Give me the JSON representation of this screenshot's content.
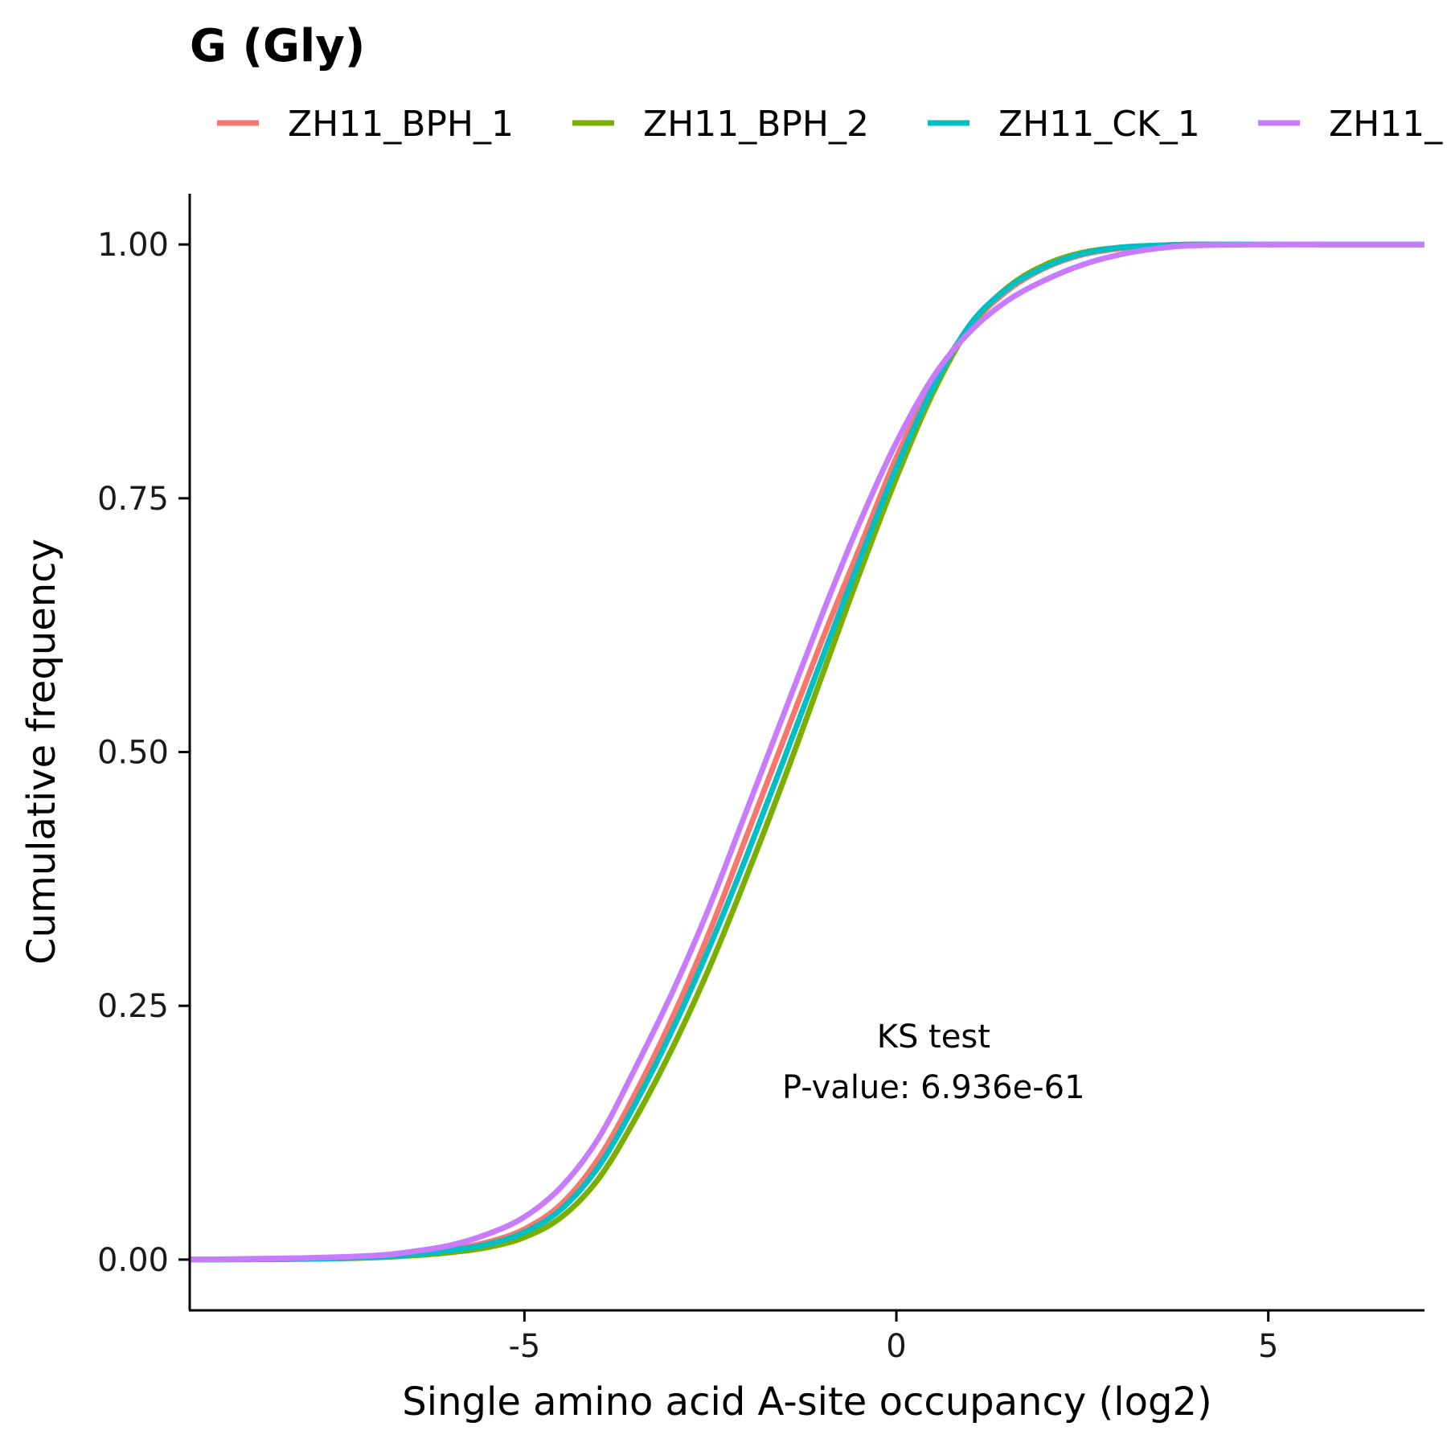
{
  "chart_data": {
    "type": "line",
    "title": "G (Gly)",
    "xlabel": "Single amino acid A-site occupancy (log2)",
    "ylabel": "Cumulative frequency",
    "xlim": [
      -9.5,
      7.1
    ],
    "ylim": [
      -0.05,
      1.05
    ],
    "x_ticks": [
      -5,
      0,
      5
    ],
    "x_tick_labels": [
      "-5",
      "0",
      "5"
    ],
    "y_ticks": [
      0,
      0.25,
      0.5,
      0.75,
      1.0
    ],
    "y_tick_labels": [
      "0.00",
      "0.25",
      "0.50",
      "0.75",
      "1.00"
    ],
    "grid": false,
    "legend_position": "top",
    "annotation": {
      "lines": [
        "KS test",
        "P-value: 6.936e-61"
      ],
      "x": 0.5,
      "y": [
        0.22,
        0.17
      ]
    },
    "x": [
      -9.5,
      -8,
      -7,
      -6.5,
      -6,
      -5.5,
      -5,
      -4.5,
      -4,
      -3.5,
      -3,
      -2.5,
      -2,
      -1.5,
      -1,
      -0.5,
      0,
      0.5,
      1,
      1.5,
      2,
      2.5,
      3,
      3.5,
      4,
      5,
      6,
      7.1
    ],
    "series": [
      {
        "name": "ZH11_BPH_1",
        "color": "#F8766D",
        "values": [
          0,
          0.001,
          0.003,
          0.006,
          0.01,
          0.017,
          0.03,
          0.055,
          0.1,
          0.165,
          0.24,
          0.325,
          0.42,
          0.515,
          0.61,
          0.7,
          0.79,
          0.865,
          0.92,
          0.955,
          0.977,
          0.99,
          0.996,
          0.999,
          1.0,
          1.0,
          1.0,
          1.0
        ]
      },
      {
        "name": "ZH11_BPH_2",
        "color": "#7CAE00",
        "values": [
          0,
          0.0005,
          0.002,
          0.004,
          0.007,
          0.012,
          0.022,
          0.042,
          0.08,
          0.14,
          0.21,
          0.29,
          0.38,
          0.475,
          0.575,
          0.675,
          0.77,
          0.855,
          0.92,
          0.958,
          0.98,
          0.992,
          0.997,
          0.999,
          1.0,
          1.0,
          1.0,
          1.0
        ]
      },
      {
        "name": "ZH11_CK_1",
        "color": "#00BFC4",
        "values": [
          0,
          0.0007,
          0.0025,
          0.005,
          0.009,
          0.015,
          0.027,
          0.05,
          0.092,
          0.155,
          0.228,
          0.31,
          0.4,
          0.495,
          0.592,
          0.688,
          0.78,
          0.86,
          0.922,
          0.957,
          0.978,
          0.991,
          0.997,
          0.999,
          1.0,
          1.0,
          1.0,
          1.0
        ]
      },
      {
        "name": "ZH11_",
        "color": "#C77CFF",
        "values": [
          0,
          0.0015,
          0.004,
          0.008,
          0.014,
          0.025,
          0.042,
          0.072,
          0.12,
          0.19,
          0.265,
          0.35,
          0.445,
          0.54,
          0.635,
          0.725,
          0.805,
          0.87,
          0.915,
          0.945,
          0.965,
          0.98,
          0.99,
          0.996,
          0.999,
          1.0,
          1.0,
          1.0
        ]
      }
    ]
  }
}
